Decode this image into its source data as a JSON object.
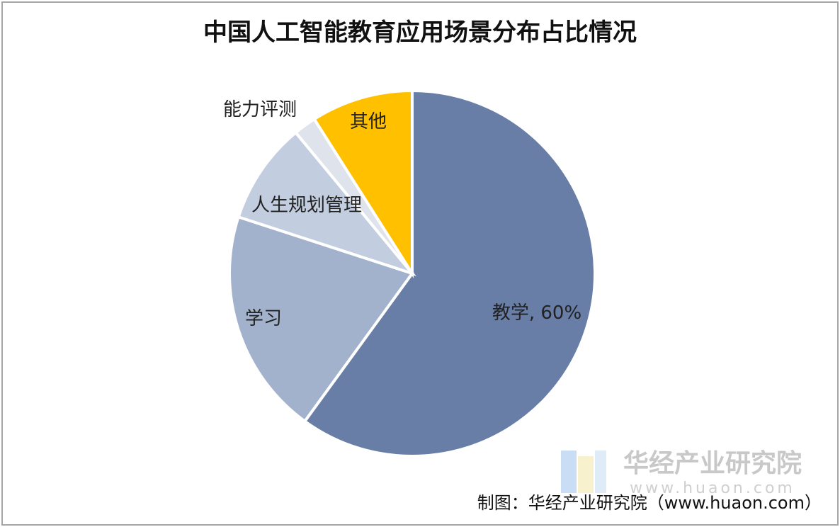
{
  "chart_data": {
    "type": "pie",
    "title": "中国人工智能教育应用场景分布占比情况",
    "categories": [
      "教学",
      "学习",
      "人生规划管理",
      "能力评测",
      "其他"
    ],
    "values": [
      60,
      20,
      9,
      2,
      9
    ],
    "value_labels": [
      ", 60%",
      null,
      null,
      null,
      null
    ],
    "colors": [
      "#687ea6",
      "#a2b2cc",
      "#c2cddf",
      "#dfe4ec",
      "#ffc000"
    ],
    "watermark": {
      "name": "华经产业研究院",
      "url": "www.huaon.com"
    },
    "source": "制图：华经产业研究院（www.huaon.com）"
  }
}
